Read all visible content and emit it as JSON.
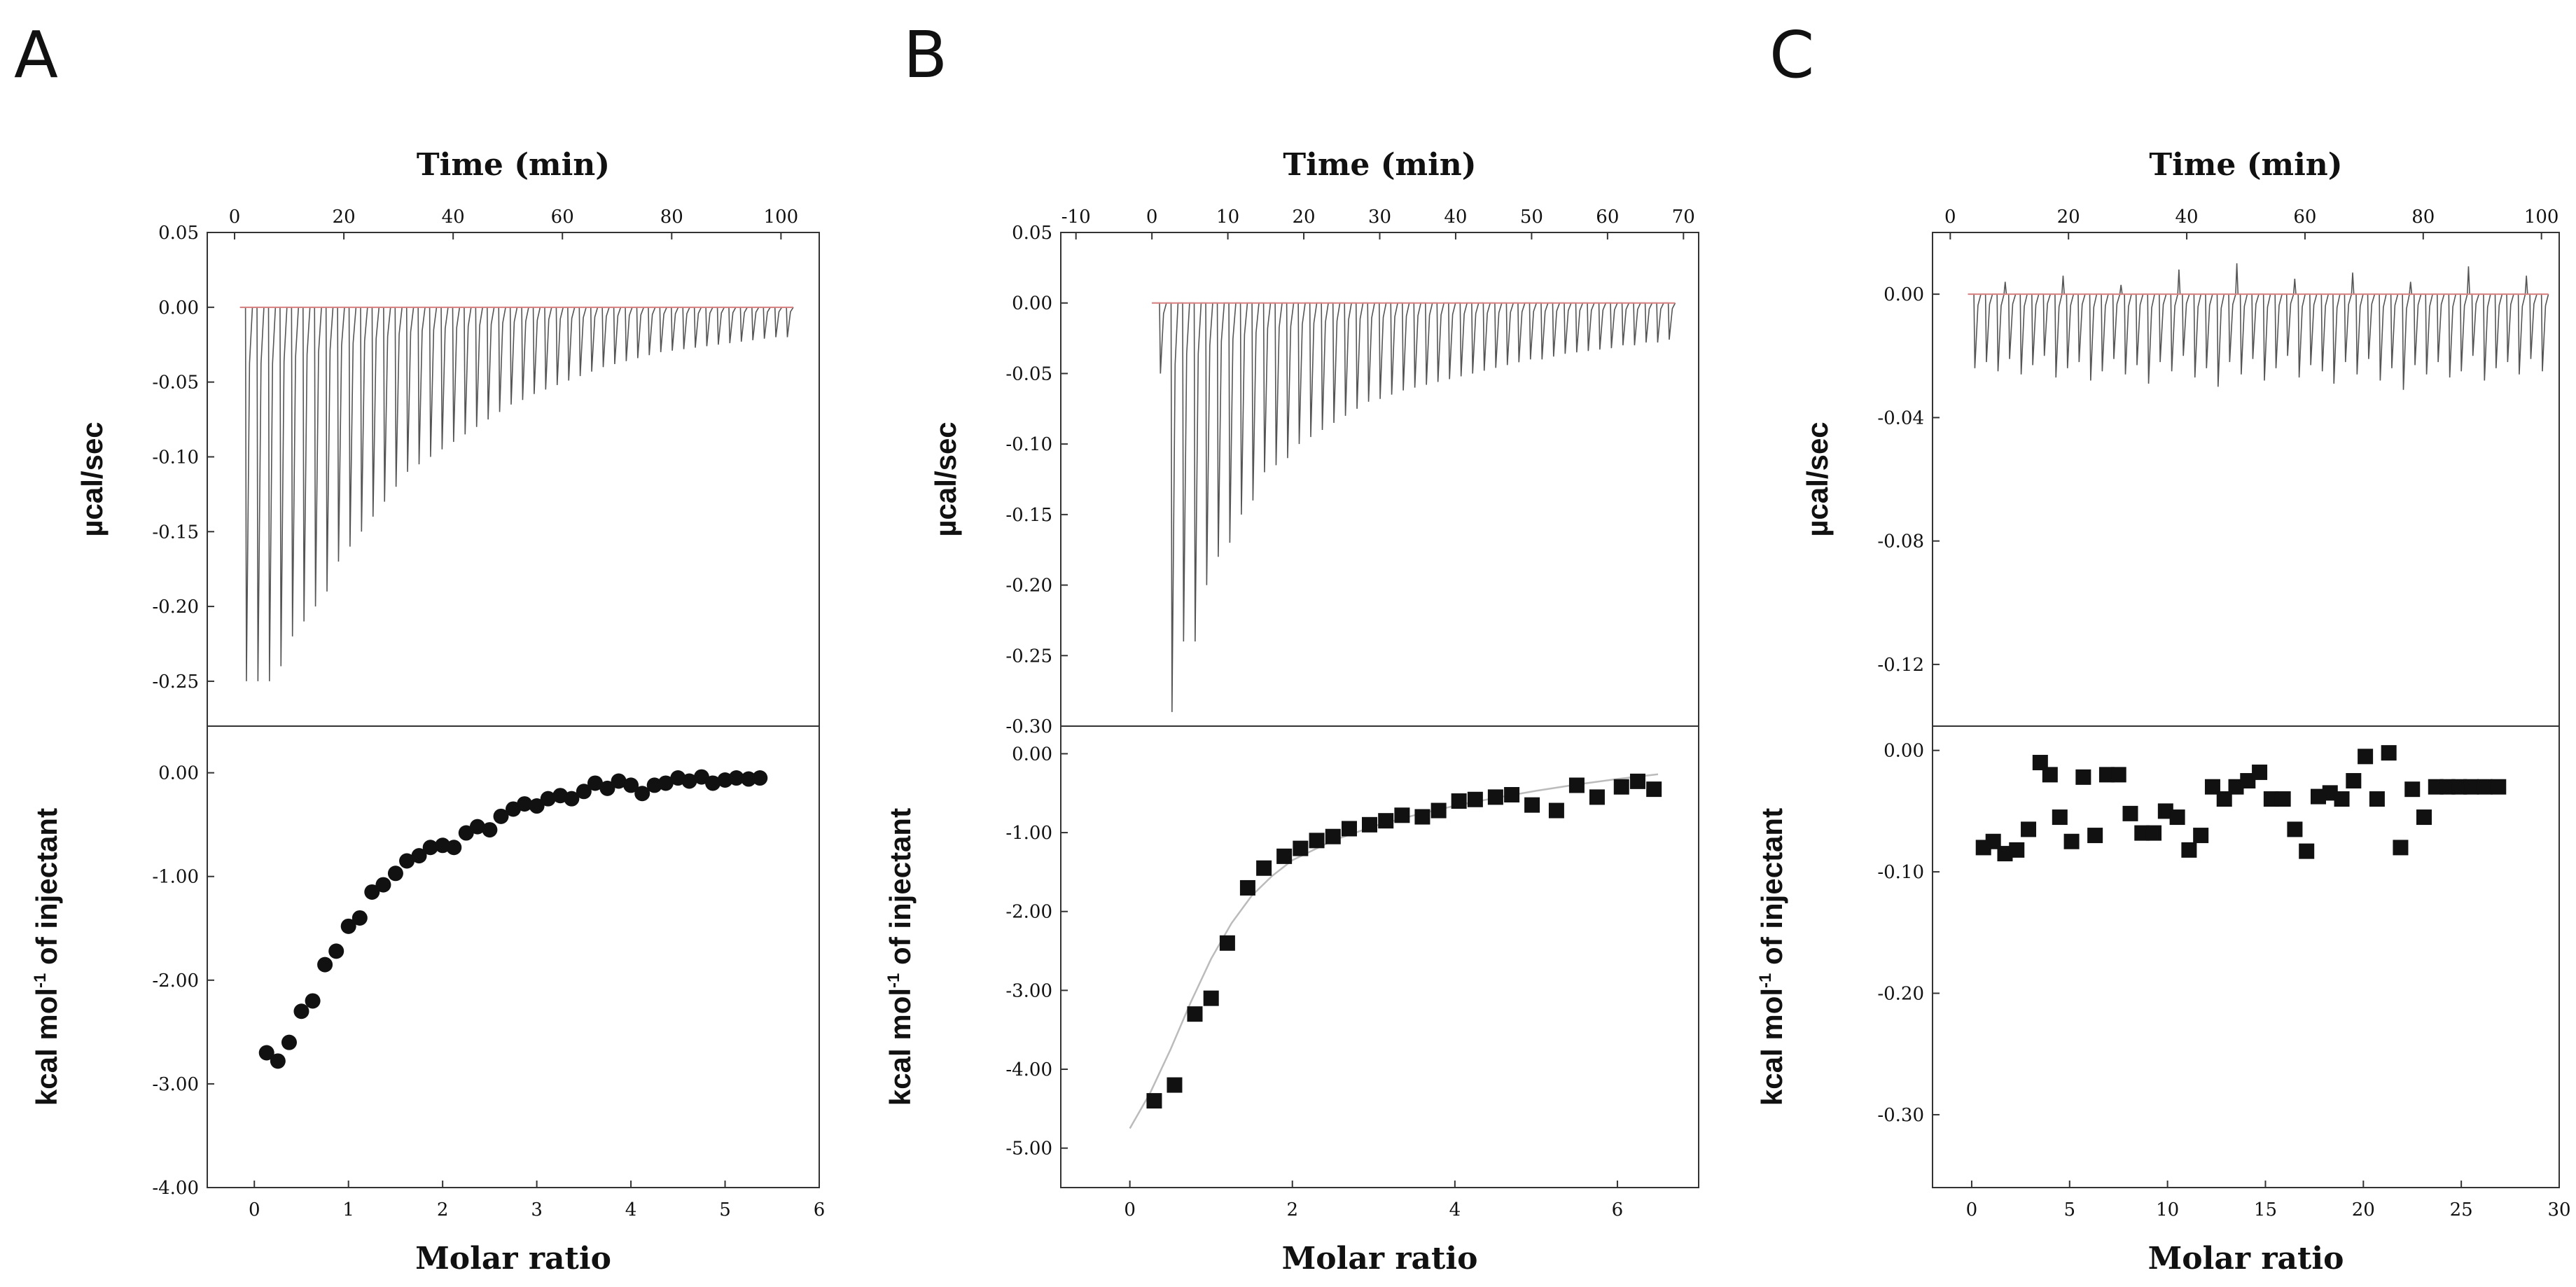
{
  "chart_data": [
    {
      "id": "A",
      "type": "scatter",
      "panel_label": "A",
      "top": {
        "type": "line",
        "xlabel": "Time (min)",
        "ylabel": "µcal/sec",
        "xlim": [
          -5,
          107
        ],
        "ylim": [
          -0.28,
          0.05
        ],
        "xticks": [
          0,
          20,
          40,
          60,
          80,
          100
        ],
        "yticks": [
          0.05,
          0.0,
          -0.05,
          -0.1,
          -0.15,
          -0.2,
          -0.25
        ],
        "ytick_labels": [
          "0.05",
          "0.00",
          "-0.05",
          "-0.10",
          "-0.15",
          "-0.20",
          "-0.25"
        ],
        "injection_start": 2,
        "injection_end": 101,
        "injection_count": 48,
        "peak_heights": [
          -0.25,
          -0.25,
          -0.25,
          -0.24,
          -0.22,
          -0.21,
          -0.2,
          -0.19,
          -0.17,
          -0.16,
          -0.15,
          -0.14,
          -0.13,
          -0.12,
          -0.11,
          -0.105,
          -0.1,
          -0.095,
          -0.09,
          -0.085,
          -0.08,
          -0.075,
          -0.07,
          -0.065,
          -0.062,
          -0.058,
          -0.055,
          -0.052,
          -0.049,
          -0.046,
          -0.043,
          -0.04,
          -0.038,
          -0.036,
          -0.034,
          -0.032,
          -0.03,
          -0.029,
          -0.028,
          -0.027,
          -0.026,
          -0.025,
          -0.024,
          -0.023,
          -0.022,
          -0.021,
          -0.02,
          -0.02
        ]
      },
      "bottom": {
        "xlabel": "Molar ratio",
        "ylabel": "kcal mol-1 of injectant",
        "ylabel_main": "kcal mol",
        "ylabel_sup": "-1",
        "ylabel_rest": " of injectant",
        "xlim": [
          -0.5,
          6
        ],
        "ylim": [
          -4.0,
          0.45
        ],
        "xticks": [
          0,
          1,
          2,
          3,
          4,
          5,
          6
        ],
        "xtick_labels": [
          "0",
          "1",
          "2",
          "3",
          "4",
          "5",
          "6"
        ],
        "yticks": [
          0,
          -1,
          -2,
          -3,
          -4
        ],
        "ytick_labels": [
          "0.00",
          "-1.00",
          "-2.00",
          "-3.00",
          "-4.00"
        ],
        "marker": "circle",
        "x": [
          0.13,
          0.25,
          0.37,
          0.5,
          0.62,
          0.75,
          0.87,
          1.0,
          1.12,
          1.25,
          1.37,
          1.5,
          1.62,
          1.75,
          1.87,
          2.0,
          2.12,
          2.25,
          2.37,
          2.5,
          2.62,
          2.75,
          2.87,
          3.0,
          3.12,
          3.25,
          3.37,
          3.5,
          3.62,
          3.75,
          3.87,
          4.0,
          4.12,
          4.25,
          4.37,
          4.5,
          4.62,
          4.75,
          4.87,
          5.0,
          5.12,
          5.25,
          5.37
        ],
        "y": [
          -2.7,
          -2.78,
          -2.6,
          -2.3,
          -2.2,
          -1.85,
          -1.72,
          -1.48,
          -1.4,
          -1.15,
          -1.08,
          -0.97,
          -0.85,
          -0.8,
          -0.72,
          -0.7,
          -0.72,
          -0.58,
          -0.52,
          -0.55,
          -0.42,
          -0.35,
          -0.3,
          -0.32,
          -0.25,
          -0.22,
          -0.25,
          -0.18,
          -0.1,
          -0.15,
          -0.08,
          -0.12,
          -0.2,
          -0.12,
          -0.1,
          -0.05,
          -0.08,
          -0.04,
          -0.1,
          -0.07,
          -0.05,
          -0.06,
          -0.05
        ]
      }
    },
    {
      "id": "B",
      "type": "scatter",
      "panel_label": "B",
      "top": {
        "type": "line",
        "xlabel": "Time (min)",
        "ylabel": "µcal/sec",
        "xlim": [
          -12,
          72
        ],
        "ylim": [
          -0.3,
          0.05
        ],
        "xticks": [
          -10,
          0,
          10,
          20,
          30,
          40,
          50,
          60,
          70
        ],
        "yticks": [
          0.05,
          0.0,
          -0.05,
          -0.1,
          -0.15,
          -0.2,
          -0.25,
          -0.3
        ],
        "ytick_labels": [
          "0.05",
          "0.00",
          "-0.05",
          "-0.10",
          "-0.15",
          "-0.20",
          "-0.25",
          "-0.30"
        ],
        "injection_start": 1,
        "injection_end": 68,
        "injection_count": 45,
        "peak_heights": [
          -0.05,
          -0.29,
          -0.24,
          -0.24,
          -0.2,
          -0.18,
          -0.17,
          -0.15,
          -0.14,
          -0.12,
          -0.115,
          -0.11,
          -0.1,
          -0.095,
          -0.09,
          -0.085,
          -0.08,
          -0.075,
          -0.07,
          -0.068,
          -0.065,
          -0.062,
          -0.06,
          -0.058,
          -0.056,
          -0.054,
          -0.052,
          -0.05,
          -0.048,
          -0.046,
          -0.044,
          -0.042,
          -0.04,
          -0.04,
          -0.038,
          -0.036,
          -0.035,
          -0.034,
          -0.033,
          -0.032,
          -0.03,
          -0.03,
          -0.028,
          -0.028,
          -0.026
        ]
      },
      "bottom": {
        "xlabel": "Molar ratio",
        "ylabel": "kcal mol-1 of injectant",
        "ylabel_main": "kcal mol",
        "ylabel_sup": "-1",
        "ylabel_rest": " of injectant",
        "xlim": [
          -0.85,
          7.0
        ],
        "ylim": [
          -5.5,
          0.35
        ],
        "xticks": [
          0,
          2,
          4,
          6
        ],
        "xtick_labels": [
          "0",
          "2",
          "4",
          "6"
        ],
        "yticks": [
          0,
          -1,
          -2,
          -3,
          -4,
          -5
        ],
        "ytick_labels": [
          "0.00",
          "-1.00",
          "-2.00",
          "-3.00",
          "-4.00",
          "-5.00"
        ],
        "marker": "square",
        "x": [
          0.3,
          0.55,
          0.8,
          1.0,
          1.2,
          1.45,
          1.65,
          1.9,
          2.1,
          2.3,
          2.5,
          2.7,
          2.95,
          3.15,
          3.35,
          3.6,
          3.8,
          4.05,
          4.25,
          4.5,
          4.7,
          4.95,
          5.25,
          5.5,
          5.75,
          6.05,
          6.25,
          6.45
        ],
        "y": [
          -4.4,
          -4.2,
          -3.3,
          -3.1,
          -2.4,
          -1.7,
          -1.45,
          -1.3,
          -1.2,
          -1.1,
          -1.05,
          -0.95,
          -0.9,
          -0.85,
          -0.78,
          -0.8,
          -0.72,
          -0.6,
          -0.58,
          -0.55,
          -0.52,
          -0.65,
          -0.72,
          -0.4,
          -0.55,
          -0.42,
          -0.35,
          -0.45
        ],
        "fit": {
          "x": [
            0.0,
            0.25,
            0.5,
            0.75,
            1.0,
            1.25,
            1.5,
            1.75,
            2.0,
            2.5,
            3.0,
            3.5,
            4.0,
            4.5,
            5.0,
            5.5,
            6.0,
            6.5
          ],
          "y": [
            -4.75,
            -4.3,
            -3.75,
            -3.15,
            -2.6,
            -2.15,
            -1.8,
            -1.55,
            -1.35,
            -1.1,
            -0.92,
            -0.78,
            -0.66,
            -0.56,
            -0.47,
            -0.39,
            -0.32,
            -0.26
          ]
        }
      }
    },
    {
      "id": "C",
      "type": "scatter",
      "panel_label": "C",
      "top": {
        "type": "line",
        "xlabel": "Time (min)",
        "ylabel": "µcal/sec",
        "xlim": [
          -3,
          103
        ],
        "ylim": [
          -0.14,
          0.02
        ],
        "xticks": [
          0,
          20,
          40,
          60,
          80,
          100
        ],
        "yticks": [
          0.0,
          -0.04,
          -0.08,
          -0.12
        ],
        "ytick_labels": [
          "0.00",
          "-0.04",
          "-0.08",
          "-0.12"
        ],
        "injection_start": 4,
        "injection_end": 100,
        "injection_count": 50,
        "peak_heights": [
          -0.024,
          -0.022,
          -0.025,
          -0.021,
          -0.026,
          -0.023,
          -0.02,
          -0.027,
          -0.024,
          -0.022,
          -0.028,
          -0.025,
          -0.021,
          -0.026,
          -0.023,
          -0.029,
          -0.022,
          -0.025,
          -0.02,
          -0.027,
          -0.024,
          -0.03,
          -0.022,
          -0.026,
          -0.021,
          -0.028,
          -0.024,
          -0.02,
          -0.027,
          -0.023,
          -0.025,
          -0.029,
          -0.022,
          -0.026,
          -0.021,
          -0.028,
          -0.024,
          -0.031,
          -0.023,
          -0.026,
          -0.022,
          -0.027,
          -0.025,
          -0.02,
          -0.028,
          -0.024,
          -0.022,
          -0.026,
          -0.021,
          -0.025
        ],
        "spike_heights": [
          0.004,
          0.006,
          0.003,
          0.008,
          0.01,
          0.005,
          0.007,
          0.004,
          0.009,
          0.006
        ]
      },
      "bottom": {
        "xlabel": "Molar ratio",
        "ylabel": "kcal mol-1 of injectant",
        "ylabel_main": "kcal mol",
        "ylabel_sup": "-1",
        "ylabel_rest": " of injectant",
        "xlim": [
          -2,
          30
        ],
        "ylim": [
          -0.36,
          0.02
        ],
        "xticks": [
          0,
          5,
          10,
          15,
          20,
          25,
          30
        ],
        "xtick_labels": [
          "0",
          "5",
          "10",
          "15",
          "20",
          "25",
          "30"
        ],
        "yticks": [
          0.0,
          -0.1,
          -0.2,
          -0.3
        ],
        "ytick_labels": [
          "0.00",
          "-0.10",
          "-0.20",
          "-0.30"
        ],
        "marker": "square",
        "x": [
          0.6,
          1.1,
          1.7,
          2.3,
          2.9,
          3.5,
          4.0,
          4.5,
          5.1,
          5.7,
          6.3,
          6.9,
          7.5,
          8.1,
          8.7,
          9.3,
          9.9,
          10.5,
          11.1,
          11.7,
          12.3,
          12.9,
          13.5,
          14.1,
          14.7,
          15.3,
          15.9,
          16.5,
          17.1,
          17.7,
          18.3,
          18.9,
          19.5,
          20.1,
          20.7,
          21.3,
          21.9,
          22.5,
          23.1,
          23.7,
          24.3,
          24.9,
          25.5,
          26.2,
          26.9
        ],
        "y": [
          -0.08,
          -0.075,
          -0.085,
          -0.082,
          -0.065,
          -0.01,
          -0.02,
          -0.055,
          -0.075,
          -0.022,
          -0.07,
          -0.02,
          -0.02,
          -0.052,
          -0.068,
          -0.068,
          -0.05,
          -0.055,
          -0.082,
          -0.07,
          -0.03,
          -0.04,
          -0.03,
          -0.025,
          -0.018,
          -0.04,
          -0.04,
          -0.065,
          -0.083,
          -0.038,
          -0.035,
          -0.04,
          -0.025,
          -0.005,
          -0.04,
          -0.002,
          -0.08,
          -0.032,
          -0.055,
          -0.03,
          -0.03,
          -0.03,
          -0.03,
          -0.03,
          -0.03
        ]
      }
    }
  ]
}
